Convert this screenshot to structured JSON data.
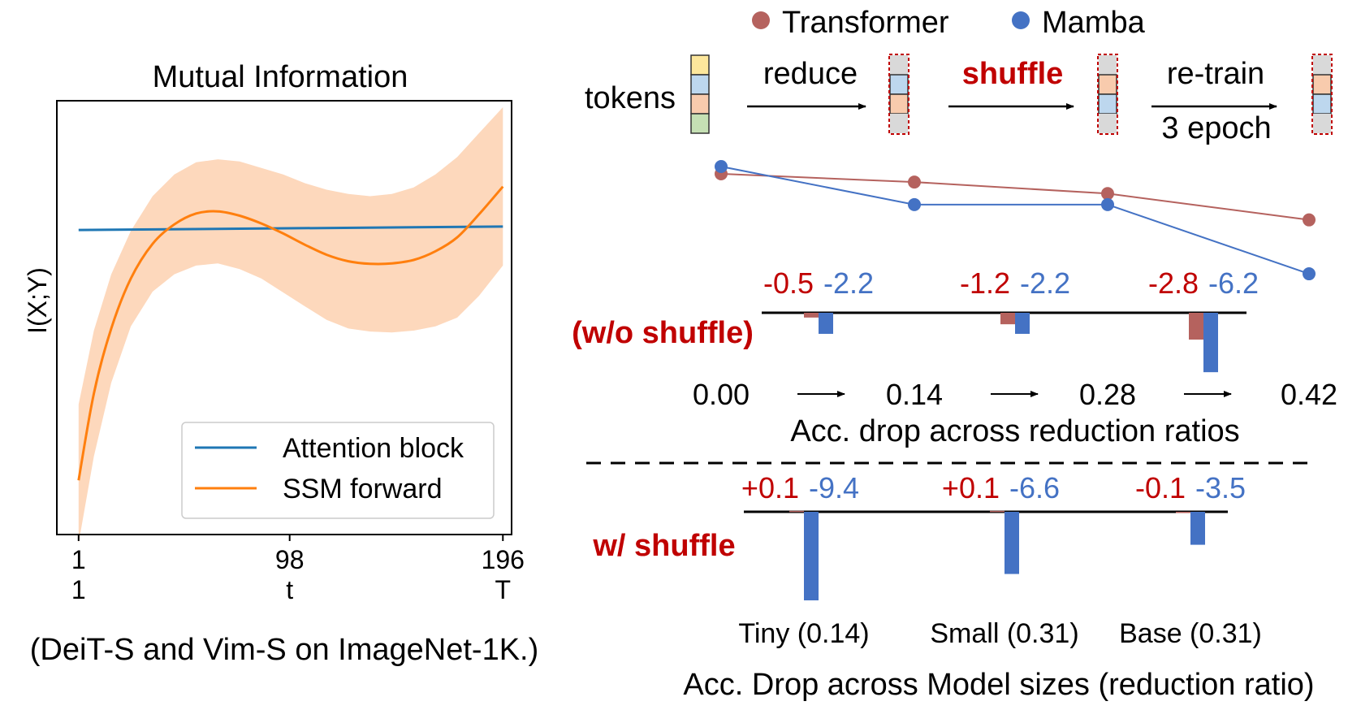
{
  "colors": {
    "transformer": "#b5625e",
    "mamba": "#4472c4",
    "attention": "#1f77b4",
    "ssm": "#ff7f0e",
    "band": "#fdd8bc",
    "red_text": "#c00000",
    "token_yellow": "#fde79c",
    "token_blue": "#bdd7ee",
    "token_orange": "#f8cbad",
    "token_green": "#c5e0b4",
    "token_gray": "#d9d9d9",
    "dashed_border": "#c00000"
  },
  "chart_data": [
    {
      "type": "line",
      "title": "Mutual Information",
      "ylabel": "I(X;Y)",
      "xlabel": "",
      "caption": "(DeiT-S and Vim-S on ImageNet-1K.)",
      "x_ticks": [
        {
          "value": 1,
          "label": "1",
          "sublabel": "1"
        },
        {
          "value": 98,
          "label": "98",
          "sublabel": "t"
        },
        {
          "value": 196,
          "label": "196",
          "sublabel": "T"
        }
      ],
      "xlim": [
        -9,
        200
      ],
      "ylim": [
        0,
        1
      ],
      "grid": false,
      "legend": {
        "position": "lower-right",
        "entries": [
          "Attention block",
          "SSM forward"
        ]
      },
      "series": [
        {
          "name": "Attention block",
          "color_key": "attention",
          "x": [
            1,
            196
          ],
          "y": [
            0.702,
            0.71
          ]
        },
        {
          "name": "SSM forward",
          "color_key": "ssm",
          "x": [
            1,
            8,
            16,
            25,
            35,
            45,
            55,
            65,
            75,
            85,
            95,
            105,
            115,
            125,
            135,
            145,
            155,
            165,
            175,
            185,
            196
          ],
          "y": [
            0.125,
            0.325,
            0.475,
            0.59,
            0.67,
            0.715,
            0.74,
            0.745,
            0.735,
            0.717,
            0.694,
            0.668,
            0.645,
            0.63,
            0.624,
            0.625,
            0.633,
            0.653,
            0.685,
            0.738,
            0.802
          ],
          "band_upper": [
            0.3,
            0.47,
            0.6,
            0.7,
            0.78,
            0.83,
            0.858,
            0.865,
            0.86,
            0.845,
            0.83,
            0.81,
            0.795,
            0.785,
            0.78,
            0.785,
            0.8,
            0.83,
            0.87,
            0.925,
            0.985
          ],
          "band_lower": [
            -0.04,
            0.18,
            0.35,
            0.48,
            0.56,
            0.6,
            0.62,
            0.625,
            0.612,
            0.59,
            0.558,
            0.526,
            0.495,
            0.475,
            0.468,
            0.466,
            0.47,
            0.48,
            0.5,
            0.55,
            0.62
          ]
        }
      ]
    },
    {
      "type": "line",
      "title": "Acc. drop across reduction ratios",
      "x": [
        0.0,
        0.14,
        0.28,
        0.42
      ],
      "x_tick_labels": [
        "0.00",
        "0.14",
        "0.28",
        "0.42"
      ],
      "ylim": [
        -7,
        0.5
      ],
      "legend": {
        "position": "top",
        "entries": [
          "Transformer",
          "Mamba"
        ]
      },
      "series": [
        {
          "name": "Transformer",
          "color_key": "transformer",
          "values": [
            0.0,
            -0.5,
            -1.2,
            -2.8
          ]
        },
        {
          "name": "Mamba",
          "color_key": "mamba",
          "values": [
            0.0,
            -2.2,
            -2.2,
            -6.2
          ]
        }
      ]
    },
    {
      "type": "bar",
      "title": "Acc. drop across reduction ratios",
      "condition": "(w/o shuffle)",
      "categories": [
        "0.14",
        "0.28",
        "0.42"
      ],
      "ylim": [
        -7,
        0
      ],
      "series": [
        {
          "name": "Transformer",
          "color_key": "transformer",
          "values": [
            -0.5,
            -1.2,
            -2.8
          ],
          "labels": [
            "-0.5",
            "-1.2",
            "-2.8"
          ]
        },
        {
          "name": "Mamba",
          "color_key": "mamba",
          "values": [
            -2.2,
            -2.2,
            -6.2
          ],
          "labels": [
            "-2.2",
            "-2.2",
            "-6.2"
          ]
        }
      ]
    },
    {
      "type": "bar",
      "title": "Acc. Drop across Model sizes (reduction ratio)",
      "condition": "w/ shuffle",
      "categories": [
        "Tiny (0.14)",
        "Small (0.31)",
        "Base (0.31)"
      ],
      "ylim": [
        -10,
        0
      ],
      "series": [
        {
          "name": "Transformer",
          "color_key": "transformer",
          "values": [
            0.1,
            0.1,
            -0.1
          ],
          "labels": [
            "+0.1",
            "+0.1",
            "-0.1"
          ]
        },
        {
          "name": "Mamba",
          "color_key": "mamba",
          "values": [
            -9.4,
            -6.6,
            -3.5
          ],
          "labels": [
            "-9.4",
            "-6.6",
            "-3.5"
          ]
        }
      ]
    }
  ],
  "pipeline": {
    "tokens_label": "tokens",
    "steps": [
      {
        "label": "reduce",
        "sublabel": ""
      },
      {
        "label": "shuffle",
        "sublabel": ""
      },
      {
        "label": "re-train",
        "sublabel": "3 epoch"
      }
    ],
    "columns": [
      [
        "token_yellow",
        "token_blue",
        "token_orange",
        "token_green"
      ],
      [
        "token_gray",
        "token_blue",
        "token_orange",
        "token_gray"
      ],
      [
        "token_gray",
        "token_orange",
        "token_blue",
        "token_gray"
      ],
      [
        "token_gray",
        "token_orange",
        "token_blue",
        "token_gray"
      ]
    ]
  }
}
